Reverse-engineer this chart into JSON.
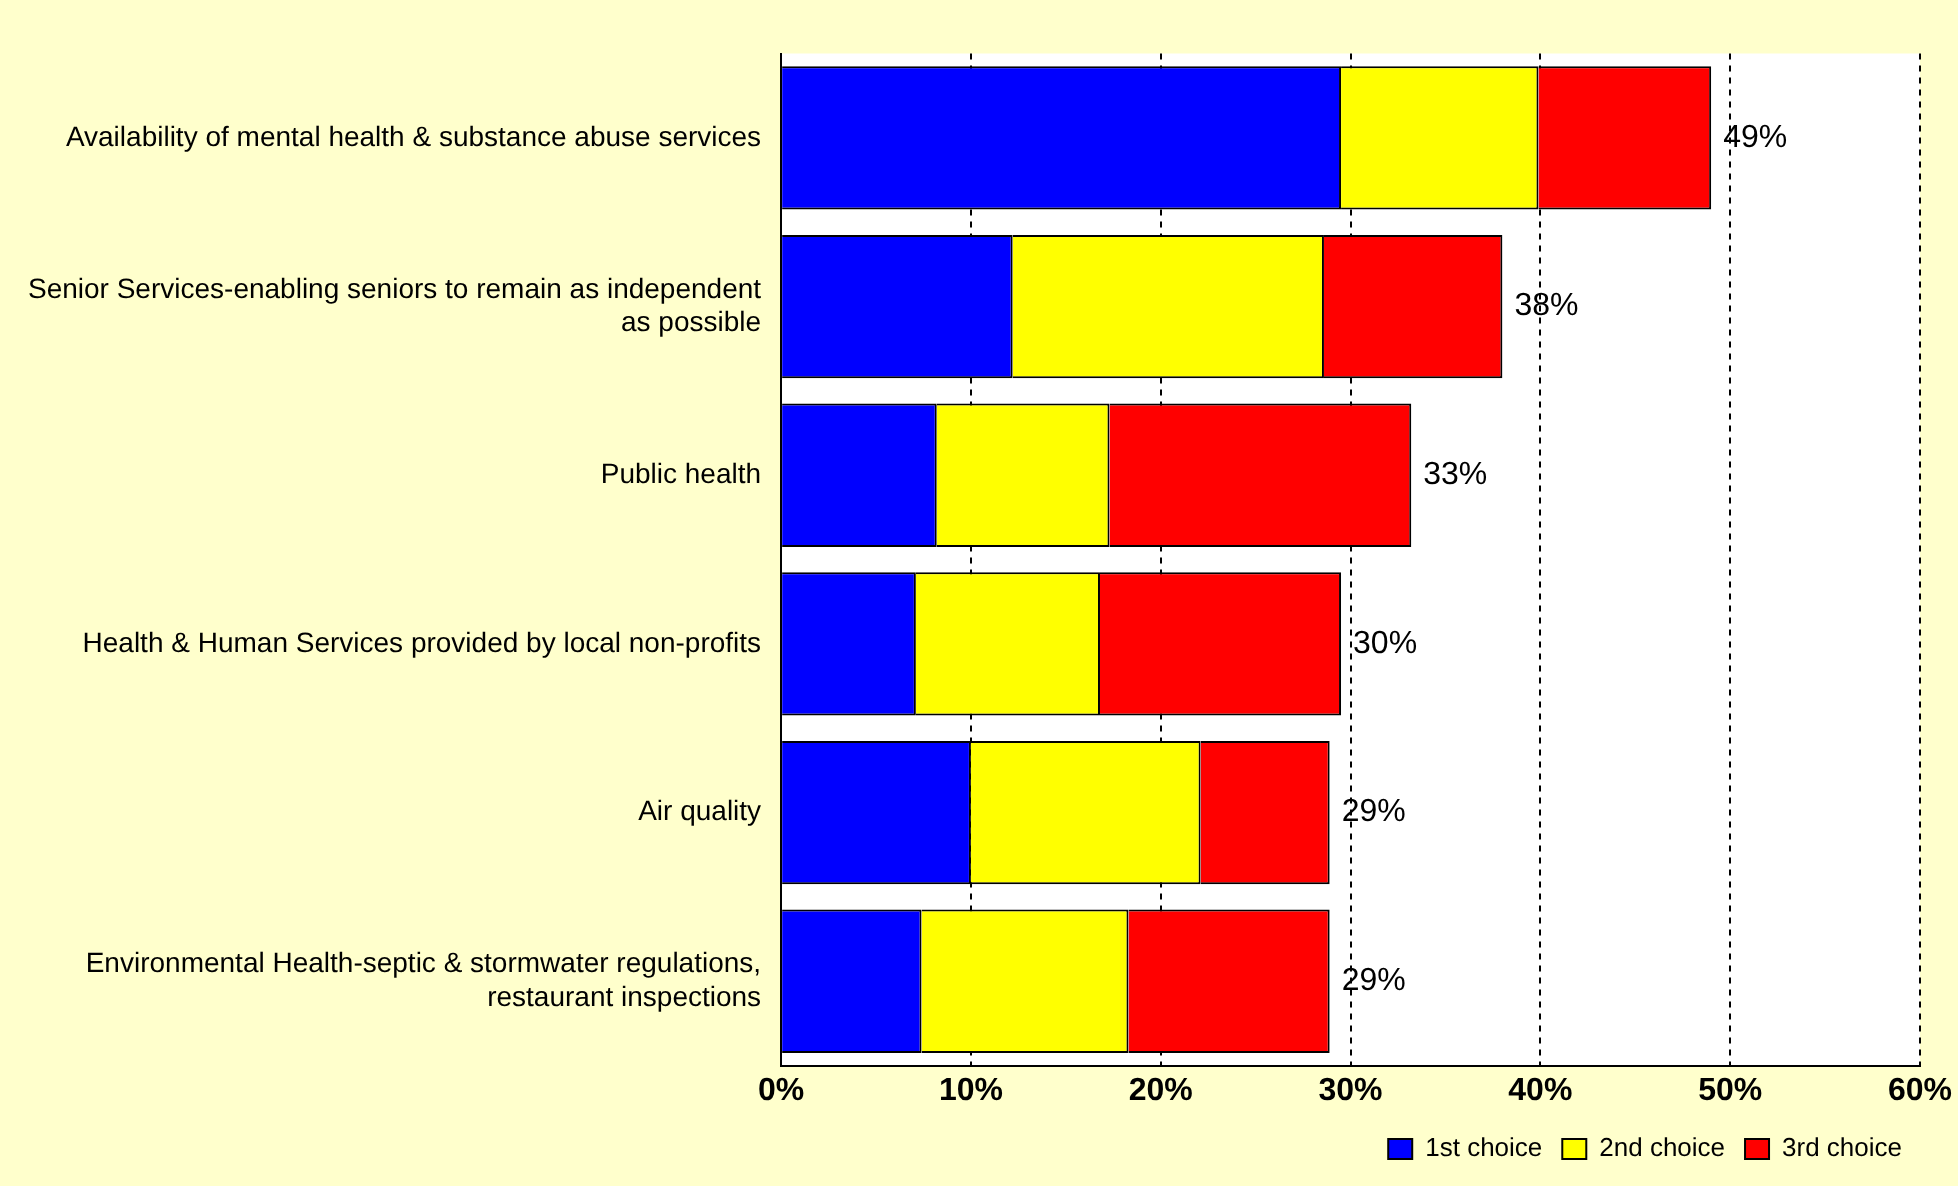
{
  "chart_data": {
    "type": "bar",
    "orientation": "horizontal",
    "stacked": true,
    "categories": [
      "Availability of mental health & substance abuse services",
      "Senior Services-enabling seniors to remain as independent as possible",
      "Public health",
      "Health & Human Services provided by local non-profits",
      "Air quality",
      "Environmental Health-septic & stormwater regulations, restaurant inspections"
    ],
    "series": [
      {
        "name": "1st choice",
        "color": "#0000ff",
        "values": [
          29.5,
          12.2,
          8.2,
          7.1,
          10.0,
          7.4
        ]
      },
      {
        "name": "2nd choice",
        "color": "#ffff00",
        "values": [
          10.4,
          16.4,
          9.1,
          9.7,
          12.1,
          10.9
        ]
      },
      {
        "name": "3rd choice",
        "color": "#ff0000",
        "values": [
          9.1,
          9.4,
          15.9,
          12.7,
          6.8,
          10.6
        ]
      }
    ],
    "totals": [
      "49%",
      "38%",
      "33%",
      "30%",
      "29%",
      "29%"
    ],
    "xlim": [
      0,
      60
    ],
    "xticks": [
      {
        "value": 0,
        "label": "0%"
      },
      {
        "value": 10,
        "label": "10%"
      },
      {
        "value": 20,
        "label": "20%"
      },
      {
        "value": 30,
        "label": "30%"
      },
      {
        "value": 40,
        "label": "40%"
      },
      {
        "value": 50,
        "label": "50%"
      },
      {
        "value": 60,
        "label": "60%"
      }
    ],
    "grid": "x",
    "legend": "bottom right"
  }
}
